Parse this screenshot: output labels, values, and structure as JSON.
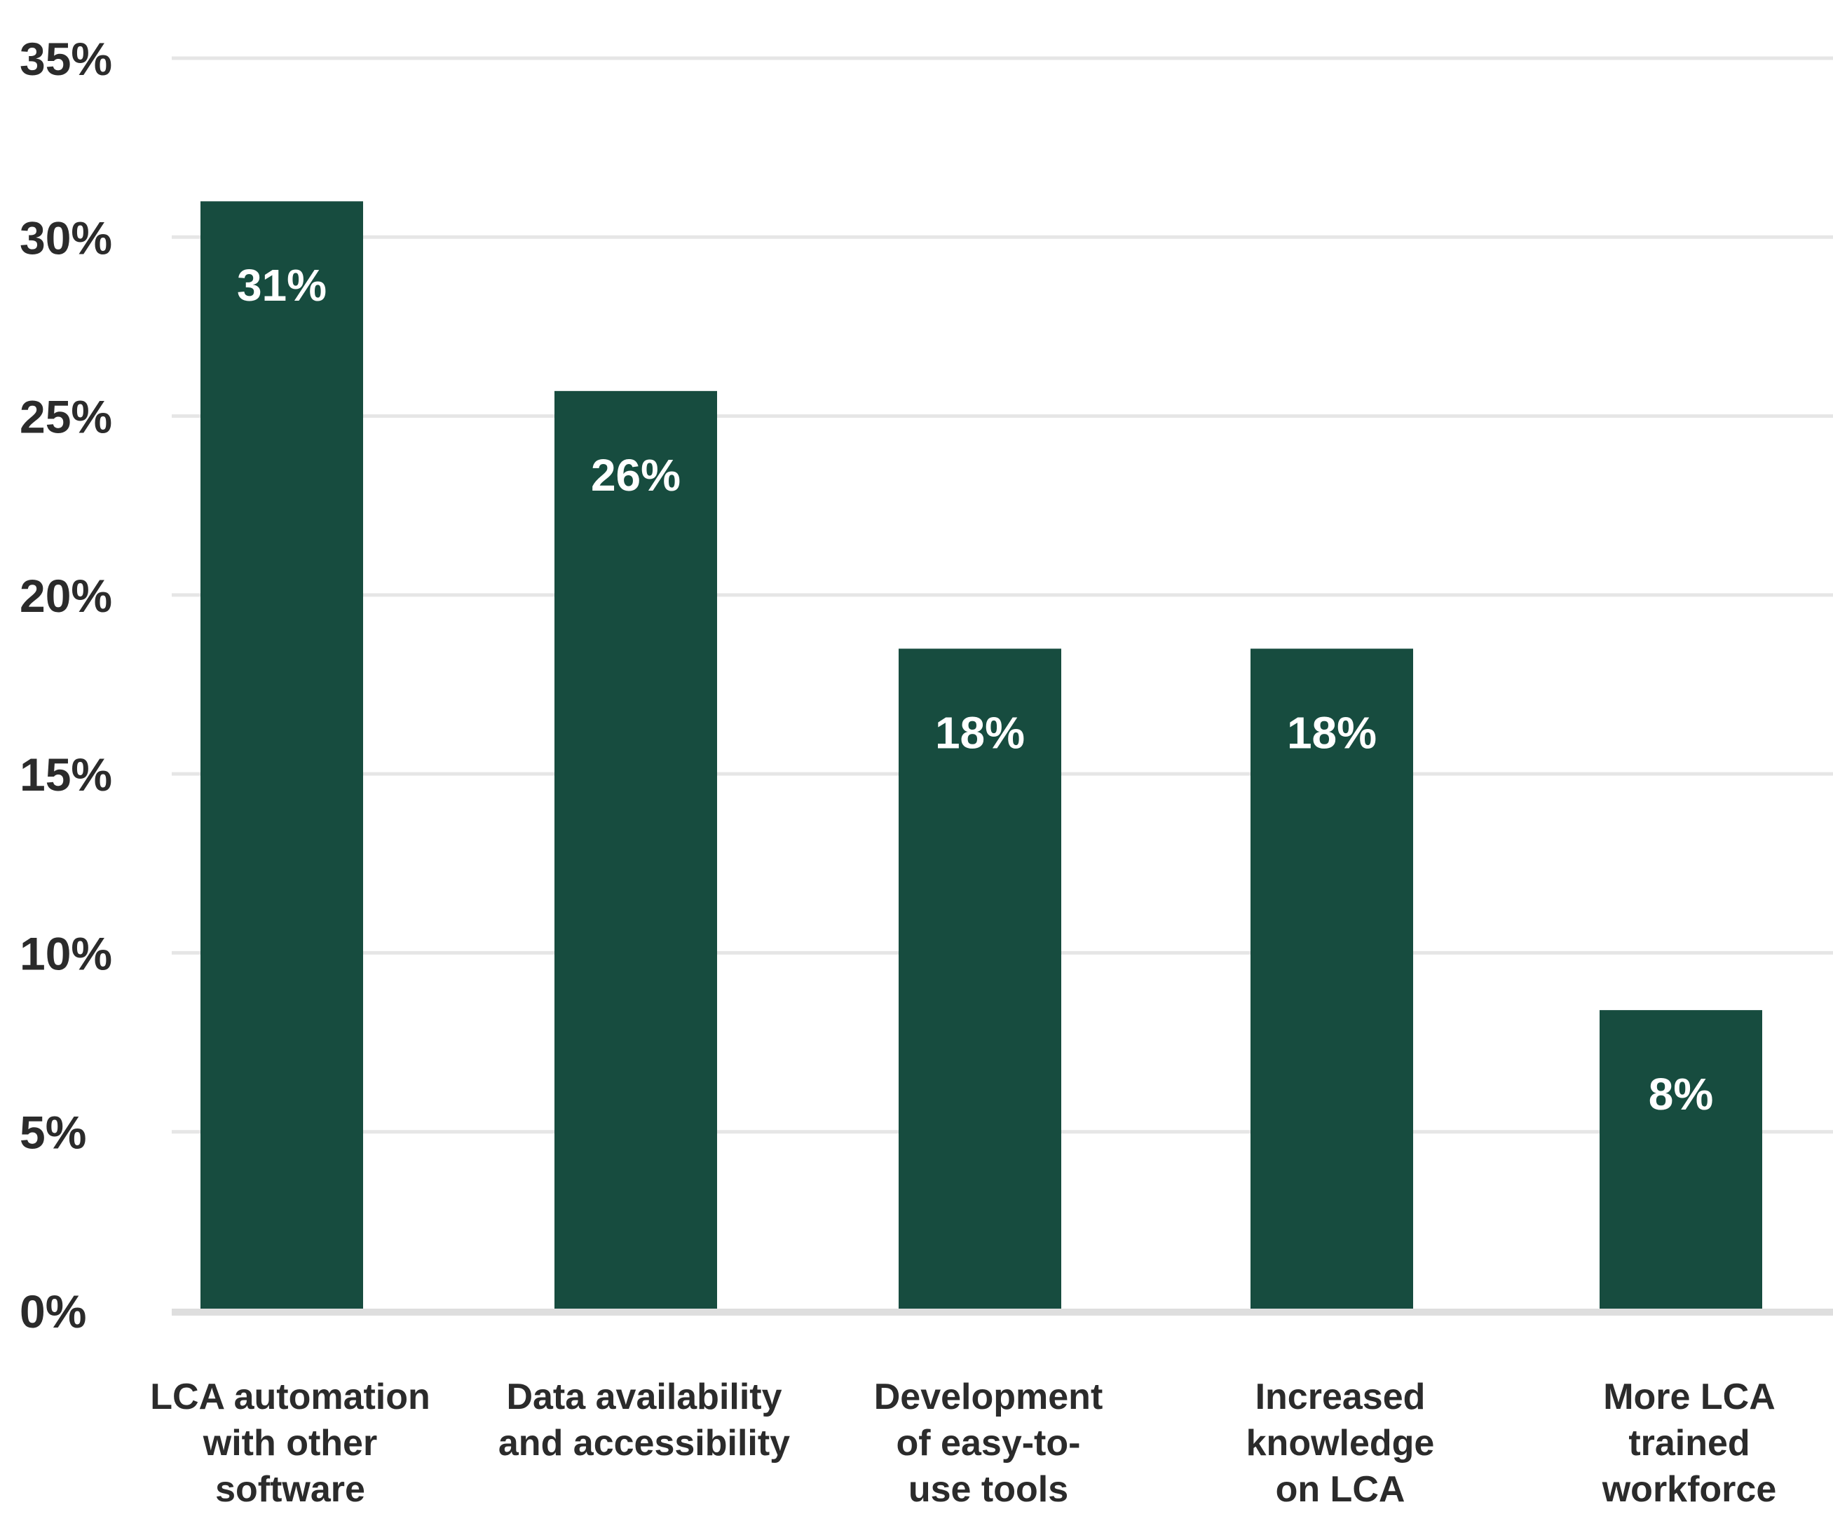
{
  "chart_data": {
    "type": "bar",
    "categories": [
      [
        "LCA automation",
        "with other",
        "software"
      ],
      [
        "Data availability",
        "and accessibility"
      ],
      [
        "Development",
        "of easy-to-",
        "use tools"
      ],
      [
        "Increased",
        "knowledge",
        "on LCA"
      ],
      [
        "More LCA",
        "trained",
        "workforce"
      ]
    ],
    "values": [
      31,
      25.7,
      18.5,
      18.5,
      8.4
    ],
    "data_labels": [
      "31%",
      "26%",
      "18%",
      "18%",
      "8%"
    ],
    "ylim": [
      0,
      35
    ],
    "yticks": [
      0,
      5,
      10,
      15,
      20,
      25,
      30,
      35
    ],
    "ytick_labels": [
      "0%",
      "5%",
      "10%",
      "15%",
      "20%",
      "25%",
      "30%",
      "35%"
    ],
    "title": "",
    "xlabel": "",
    "ylabel": "",
    "grid": true,
    "colors": {
      "bar": "#174c3f",
      "grid": "#e6e6e6",
      "baseline": "#dedede",
      "text": "#2b2b2b",
      "bar_label": "#ffffff"
    }
  }
}
